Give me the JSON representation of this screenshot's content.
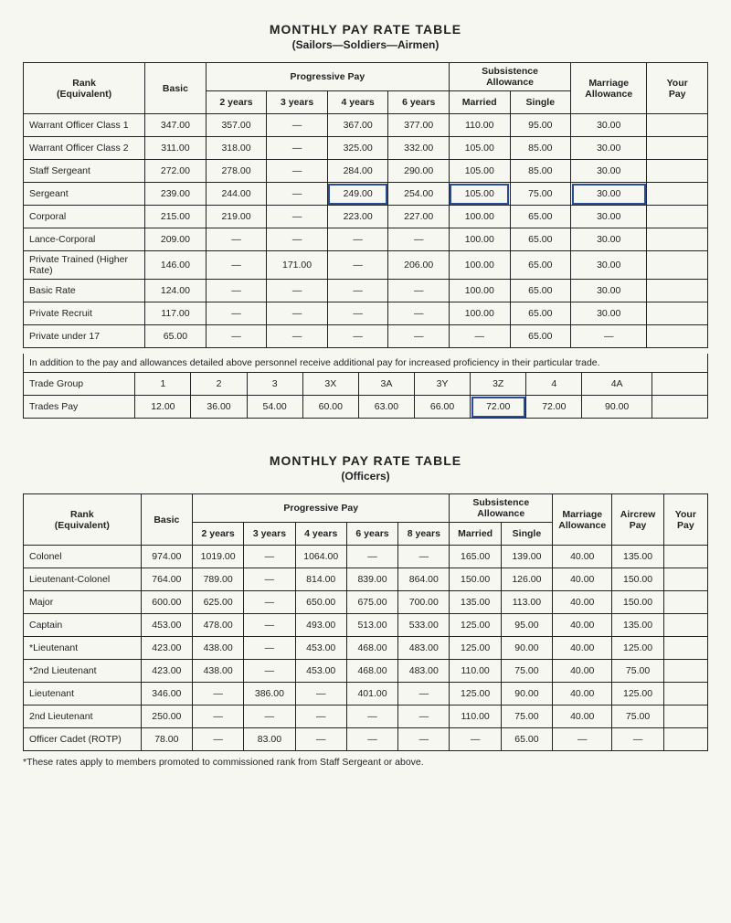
{
  "table1": {
    "title": "MONTHLY PAY RATE TABLE",
    "subtitle": "(Sailors—Soldiers—Airmen)",
    "header_rank": "Rank\n(Equivalent)",
    "header_basic": "Basic",
    "header_progressive": "Progressive Pay",
    "header_subsistence": "Subsistence\nAllowance",
    "header_marriage": "Marriage\nAllowance",
    "header_yourpay": "Your\nPay",
    "sub_2y": "2 years",
    "sub_3y": "3 years",
    "sub_4y": "4 years",
    "sub_6y": "6 years",
    "sub_married": "Married",
    "sub_single": "Single",
    "rows": [
      {
        "rank": "Warrant Officer Class 1",
        "basic": "347.00",
        "y2": "357.00",
        "y3": "—",
        "y4": "367.00",
        "y6": "377.00",
        "married": "110.00",
        "single": "95.00",
        "marriage": "30.00",
        "your": ""
      },
      {
        "rank": "Warrant Officer Class 2",
        "basic": "311.00",
        "y2": "318.00",
        "y3": "—",
        "y4": "325.00",
        "y6": "332.00",
        "married": "105.00",
        "single": "85.00",
        "marriage": "30.00",
        "your": ""
      },
      {
        "rank": "Staff Sergeant",
        "basic": "272.00",
        "y2": "278.00",
        "y3": "—",
        "y4": "284.00",
        "y6": "290.00",
        "married": "105.00",
        "single": "85.00",
        "marriage": "30.00",
        "your": ""
      },
      {
        "rank": "Sergeant",
        "basic": "239.00",
        "y2": "244.00",
        "y3": "—",
        "y4": "249.00",
        "y6": "254.00",
        "married": "105.00",
        "single": "75.00",
        "marriage": "30.00",
        "your": "",
        "circle_y4": true,
        "circle_married": true,
        "circle_marriage": true
      },
      {
        "rank": "Corporal",
        "basic": "215.00",
        "y2": "219.00",
        "y3": "—",
        "y4": "223.00",
        "y6": "227.00",
        "married": "100.00",
        "single": "65.00",
        "marriage": "30.00",
        "your": ""
      },
      {
        "rank": "Lance-Corporal",
        "basic": "209.00",
        "y2": "—",
        "y3": "—",
        "y4": "—",
        "y6": "—",
        "married": "100.00",
        "single": "65.00",
        "marriage": "30.00",
        "your": ""
      },
      {
        "rank": "Private Trained (Higher Rate)",
        "basic": "146.00",
        "y2": "—",
        "y3": "171.00",
        "y4": "—",
        "y6": "206.00",
        "married": "100.00",
        "single": "65.00",
        "marriage": "30.00",
        "your": ""
      },
      {
        "rank": "Basic Rate",
        "basic": "124.00",
        "y2": "—",
        "y3": "—",
        "y4": "—",
        "y6": "—",
        "married": "100.00",
        "single": "65.00",
        "marriage": "30.00",
        "your": ""
      },
      {
        "rank": "Private Recruit",
        "basic": "117.00",
        "y2": "—",
        "y3": "—",
        "y4": "—",
        "y6": "—",
        "married": "100.00",
        "single": "65.00",
        "marriage": "30.00",
        "your": ""
      },
      {
        "rank": "Private under 17",
        "basic": "65.00",
        "y2": "—",
        "y3": "—",
        "y4": "—",
        "y6": "—",
        "married": "—",
        "single": "65.00",
        "marriage": "—",
        "your": ""
      }
    ],
    "note": "In addition to the pay and allowances detailed above personnel receive additional pay for increased proficiency in their particular trade.",
    "trade_label": "Trade Group",
    "trade_groups": [
      "1",
      "2",
      "3",
      "3X",
      "3A",
      "3Y",
      "3Z",
      "4",
      "4A",
      ""
    ],
    "trades_pay_label": "Trades Pay",
    "trades_pay": [
      "12.00",
      "36.00",
      "54.00",
      "60.00",
      "63.00",
      "66.00",
      "72.00",
      "72.00",
      "90.00",
      ""
    ],
    "circle_trade_idx": 6
  },
  "table2": {
    "title": "MONTHLY PAY RATE TABLE",
    "subtitle": "(Officers)",
    "header_rank": "Rank\n(Equivalent)",
    "header_basic": "Basic",
    "header_progressive": "Progressive Pay",
    "header_subsistence": "Subsistence\nAllowance",
    "header_marriage": "Marriage\nAllowance",
    "header_aircrew": "Aircrew\nPay",
    "header_yourpay": "Your\nPay",
    "sub_2y": "2 years",
    "sub_3y": "3 years",
    "sub_4y": "4 years",
    "sub_6y": "6 years",
    "sub_8y": "8 years",
    "sub_married": "Married",
    "sub_single": "Single",
    "rows": [
      {
        "rank": "Colonel",
        "basic": "974.00",
        "y2": "1019.00",
        "y3": "—",
        "y4": "1064.00",
        "y6": "—",
        "y8": "—",
        "married": "165.00",
        "single": "139.00",
        "marriage": "40.00",
        "aircrew": "135.00",
        "your": ""
      },
      {
        "rank": "Lieutenant-Colonel",
        "basic": "764.00",
        "y2": "789.00",
        "y3": "—",
        "y4": "814.00",
        "y6": "839.00",
        "y8": "864.00",
        "married": "150.00",
        "single": "126.00",
        "marriage": "40.00",
        "aircrew": "150.00",
        "your": ""
      },
      {
        "rank": "Major",
        "basic": "600.00",
        "y2": "625.00",
        "y3": "—",
        "y4": "650.00",
        "y6": "675.00",
        "y8": "700.00",
        "married": "135.00",
        "single": "113.00",
        "marriage": "40.00",
        "aircrew": "150.00",
        "your": ""
      },
      {
        "rank": "Captain",
        "basic": "453.00",
        "y2": "478.00",
        "y3": "—",
        "y4": "493.00",
        "y6": "513.00",
        "y8": "533.00",
        "married": "125.00",
        "single": "95.00",
        "marriage": "40.00",
        "aircrew": "135.00",
        "your": ""
      },
      {
        "rank": "*Lieutenant",
        "basic": "423.00",
        "y2": "438.00",
        "y3": "—",
        "y4": "453.00",
        "y6": "468.00",
        "y8": "483.00",
        "married": "125.00",
        "single": "90.00",
        "marriage": "40.00",
        "aircrew": "125.00",
        "your": ""
      },
      {
        "rank": "*2nd Lieutenant",
        "basic": "423.00",
        "y2": "438.00",
        "y3": "—",
        "y4": "453.00",
        "y6": "468.00",
        "y8": "483.00",
        "married": "110.00",
        "single": "75.00",
        "marriage": "40.00",
        "aircrew": "75.00",
        "your": ""
      },
      {
        "rank": "Lieutenant",
        "basic": "346.00",
        "y2": "—",
        "y3": "386.00",
        "y4": "—",
        "y6": "401.00",
        "y8": "—",
        "married": "125.00",
        "single": "90.00",
        "marriage": "40.00",
        "aircrew": "125.00",
        "your": ""
      },
      {
        "rank": "2nd Lieutenant",
        "basic": "250.00",
        "y2": "—",
        "y3": "—",
        "y4": "—",
        "y6": "—",
        "y8": "—",
        "married": "110.00",
        "single": "75.00",
        "marriage": "40.00",
        "aircrew": "75.00",
        "your": ""
      },
      {
        "rank": "Officer Cadet (ROTP)",
        "basic": "78.00",
        "y2": "—",
        "y3": "83.00",
        "y4": "—",
        "y6": "—",
        "y8": "—",
        "married": "—",
        "single": "65.00",
        "marriage": "—",
        "aircrew": "—",
        "your": ""
      }
    ],
    "footnote": "*These rates apply to members promoted to commissioned rank from Staff Sergeant or above."
  }
}
